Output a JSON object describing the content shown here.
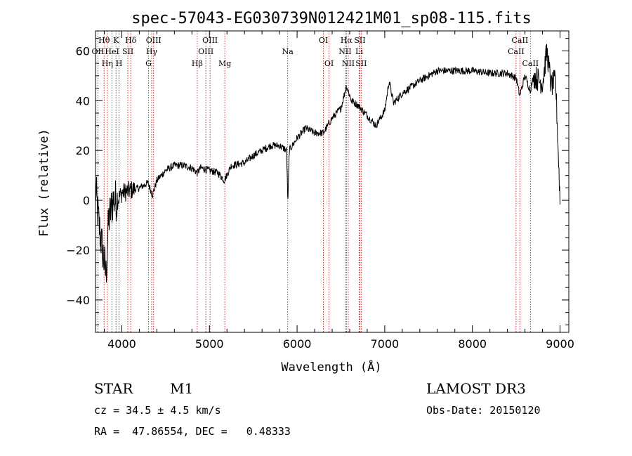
{
  "chart_data": {
    "type": "line",
    "title": "spec-57043-EG030739N012421M01_sp08-115.fits",
    "xlabel": "Wavelength (Å)",
    "ylabel": "Flux (relative)",
    "xlim": [
      3700,
      9100
    ],
    "ylim": [
      -53,
      68
    ],
    "x_ticks": [
      4000,
      5000,
      6000,
      7000,
      8000,
      9000
    ],
    "y_ticks": [
      -40,
      -20,
      0,
      20,
      40,
      60
    ],
    "series": [
      {
        "name": "spectrum",
        "color": "#000000",
        "anchors": [
          [
            3700,
            5
          ],
          [
            3740,
            -10
          ],
          [
            3780,
            -20
          ],
          [
            3820,
            -30
          ],
          [
            3850,
            -8
          ],
          [
            3900,
            0
          ],
          [
            3950,
            0
          ],
          [
            4000,
            3
          ],
          [
            4100,
            4
          ],
          [
            4200,
            5
          ],
          [
            4300,
            7
          ],
          [
            4350,
            2
          ],
          [
            4400,
            8
          ],
          [
            4500,
            12
          ],
          [
            4600,
            14
          ],
          [
            4700,
            14
          ],
          [
            4800,
            13
          ],
          [
            4860,
            11
          ],
          [
            4900,
            13
          ],
          [
            5000,
            12
          ],
          [
            5100,
            11
          ],
          [
            5170,
            8
          ],
          [
            5250,
            14
          ],
          [
            5400,
            15
          ],
          [
            5500,
            18
          ],
          [
            5600,
            20
          ],
          [
            5700,
            22
          ],
          [
            5800,
            22
          ],
          [
            5880,
            20
          ],
          [
            5895,
            -2
          ],
          [
            5910,
            20
          ],
          [
            6000,
            25
          ],
          [
            6100,
            29
          ],
          [
            6200,
            27
          ],
          [
            6300,
            27
          ],
          [
            6400,
            33
          ],
          [
            6500,
            37
          ],
          [
            6563,
            46
          ],
          [
            6620,
            40
          ],
          [
            6700,
            38
          ],
          [
            6800,
            34
          ],
          [
            6900,
            30
          ],
          [
            7000,
            36
          ],
          [
            7050,
            48
          ],
          [
            7100,
            39
          ],
          [
            7200,
            43
          ],
          [
            7400,
            48
          ],
          [
            7600,
            52
          ],
          [
            7800,
            52
          ],
          [
            8000,
            52
          ],
          [
            8200,
            51
          ],
          [
            8400,
            51
          ],
          [
            8500,
            49
          ],
          [
            8540,
            42
          ],
          [
            8600,
            50
          ],
          [
            8660,
            44
          ],
          [
            8700,
            50
          ],
          [
            8800,
            47
          ],
          [
            8850,
            60
          ],
          [
            8900,
            46
          ],
          [
            8950,
            48
          ],
          [
            9000,
            0
          ]
        ]
      }
    ],
    "lines": [
      {
        "label": "Hθ",
        "x": 3798,
        "row": 1
      },
      {
        "label": "OII",
        "x": 3727,
        "row": 2
      },
      {
        "label": "Hη",
        "x": 3835,
        "row": 3
      },
      {
        "label": "HeI",
        "x": 3889,
        "row": 2
      },
      {
        "label": "K",
        "x": 3934,
        "row": 1
      },
      {
        "label": "SII",
        "x": 4069,
        "row": 2
      },
      {
        "label": "H",
        "x": 3969,
        "row": 3
      },
      {
        "label": "Hδ",
        "x": 4102,
        "row": 1
      },
      {
        "label": "G",
        "x": 4305,
        "row": 3
      },
      {
        "label": "OIII",
        "x": 4363,
        "row": 1
      },
      {
        "label": "Hγ",
        "x": 4341,
        "row": 2
      },
      {
        "label": "Hβ",
        "x": 4861,
        "row": 3
      },
      {
        "label": "OIII",
        "x": 5007,
        "row": 1
      },
      {
        "label": "OIII",
        "x": 4959,
        "row": 2
      },
      {
        "label": "Mg",
        "x": 5175,
        "row": 3
      },
      {
        "label": "Na",
        "x": 5893,
        "row": 2
      },
      {
        "label": "OI",
        "x": 6300,
        "row": 1
      },
      {
        "label": "OI",
        "x": 6364,
        "row": 3
      },
      {
        "label": "Hα",
        "x": 6563,
        "row": 1
      },
      {
        "label": "SII",
        "x": 6716,
        "row": 1
      },
      {
        "label": "NII",
        "x": 6548,
        "row": 2
      },
      {
        "label": "Li",
        "x": 6708,
        "row": 2
      },
      {
        "label": "NII",
        "x": 6584,
        "row": 3
      },
      {
        "label": "SII",
        "x": 6731,
        "row": 3
      },
      {
        "label": "CaII",
        "x": 8542,
        "row": 1
      },
      {
        "label": "CaII",
        "x": 8498,
        "row": 2
      },
      {
        "label": "CaII",
        "x": 8662,
        "row": 3
      }
    ]
  },
  "info": {
    "class_type": "STAR",
    "subclass": "M1",
    "survey": "LAMOST DR3",
    "cz": "cz = 34.5 ± 4.5 km/s",
    "obs_date": "Obs-Date: 20150120",
    "radec": "RA =  47.86554, DEC =   0.48333"
  },
  "colors": {
    "line_markers": "#c00000",
    "spectrum": "#000000"
  }
}
